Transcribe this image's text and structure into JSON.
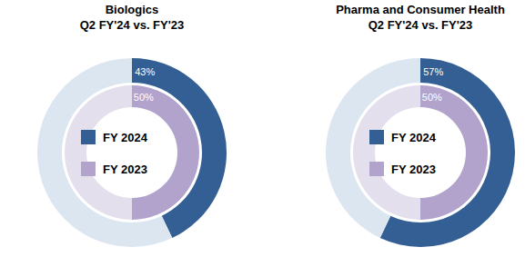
{
  "chart_data": [
    {
      "type": "pie",
      "title": "Biologics",
      "subtitle": "Q2 FY'24 vs. FY'23",
      "legend": "center",
      "data_labels": true,
      "series": [
        {
          "name": "FY 2024",
          "color": "#335f94",
          "colors": [
            "#335f94",
            "#dce6f1"
          ],
          "values": [
            43,
            57
          ],
          "value_labels": [
            "43%",
            null
          ]
        },
        {
          "name": "FY 2023",
          "color": "#b2a3cc",
          "colors": [
            "#b2a3cc",
            "#e4dfed"
          ],
          "values": [
            50,
            50
          ],
          "value_labels": [
            "50%",
            null
          ]
        }
      ]
    },
    {
      "type": "pie",
      "title": "Pharma and Consumer Health",
      "subtitle": "Q2 FY'24 vs. FY'23",
      "legend": "center",
      "data_labels": true,
      "series": [
        {
          "name": "FY 2024",
          "color": "#335f94",
          "colors": [
            "#335f94",
            "#dce6f1"
          ],
          "values": [
            57,
            43
          ],
          "value_labels": [
            "57%",
            null
          ]
        },
        {
          "name": "FY 2023",
          "color": "#b2a3cc",
          "colors": [
            "#b2a3cc",
            "#e4dfed"
          ],
          "values": [
            50,
            50
          ],
          "value_labels": [
            "50%",
            null
          ]
        }
      ]
    }
  ]
}
